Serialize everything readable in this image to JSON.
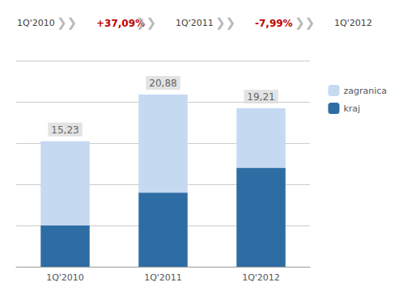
{
  "chart_data": {
    "type": "bar",
    "categories": [
      "1Q'2010",
      "1Q'2011",
      "1Q'2012"
    ],
    "series": [
      {
        "name": "kraj",
        "color": "#2E6DA4",
        "values": [
          5.0,
          9.0,
          12.0
        ]
      },
      {
        "name": "zagranica",
        "color": "#C5D9F1",
        "values": [
          10.23,
          11.88,
          7.21
        ]
      }
    ],
    "totals": {
      "values": [
        15.23,
        20.88,
        19.21
      ],
      "value_labels": [
        "15,23",
        "20,88",
        "19,21"
      ],
      "color": "#404040"
    },
    "annotations": [
      {
        "text": "1Q'2010",
        "color": "#404040"
      },
      {
        "text": "❯❯",
        "color": "#AAAAAA"
      },
      {
        "text": "+37,09%",
        "color": "#C00000"
      },
      {
        "text": "❯❯",
        "color": "#AAAAAA"
      },
      {
        "text": "1Q'2011",
        "color": "#404040"
      },
      {
        "text": "❯❯",
        "color": "#AAAAAA"
      },
      {
        "text": "-7,99%",
        "color": "#C00000"
      },
      {
        "text": "❯❯",
        "color": "#AAAAAA"
      },
      {
        "text": "1Q'2012",
        "color": "#404040"
      }
    ],
    "stacked": true,
    "ylim": [
      0,
      25
    ],
    "yticks": [
      0,
      5,
      10,
      15,
      20,
      25
    ],
    "grid": true,
    "tick_labels": "x",
    "legend": "right"
  }
}
